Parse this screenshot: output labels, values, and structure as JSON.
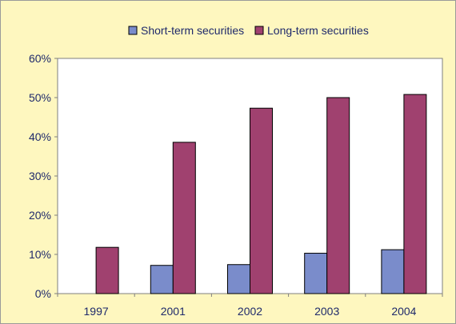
{
  "colors": {
    "background": "#FEF7BF",
    "frame": "#9A9A9A",
    "plot_area": "#FFFFFF",
    "text": "#1F2A6B",
    "bar_outline": "#000000",
    "short_term": "#7A8CCB",
    "long_term": "#A0416F"
  },
  "chart_data": {
    "type": "bar",
    "categories": [
      "1997",
      "2001",
      "2002",
      "2003",
      "2004"
    ],
    "series": [
      {
        "name": "Short-term securities",
        "values": [
          0,
          7.2,
          7.4,
          10.3,
          11.2
        ]
      },
      {
        "name": "Long-term securities",
        "values": [
          11.8,
          38.6,
          47.3,
          50.0,
          50.8
        ]
      }
    ],
    "ylim": [
      0,
      60
    ],
    "yticks": [
      "0%",
      "10%",
      "20%",
      "30%",
      "40%",
      "50%",
      "60%"
    ],
    "legend": "top-center",
    "grid": false
  }
}
